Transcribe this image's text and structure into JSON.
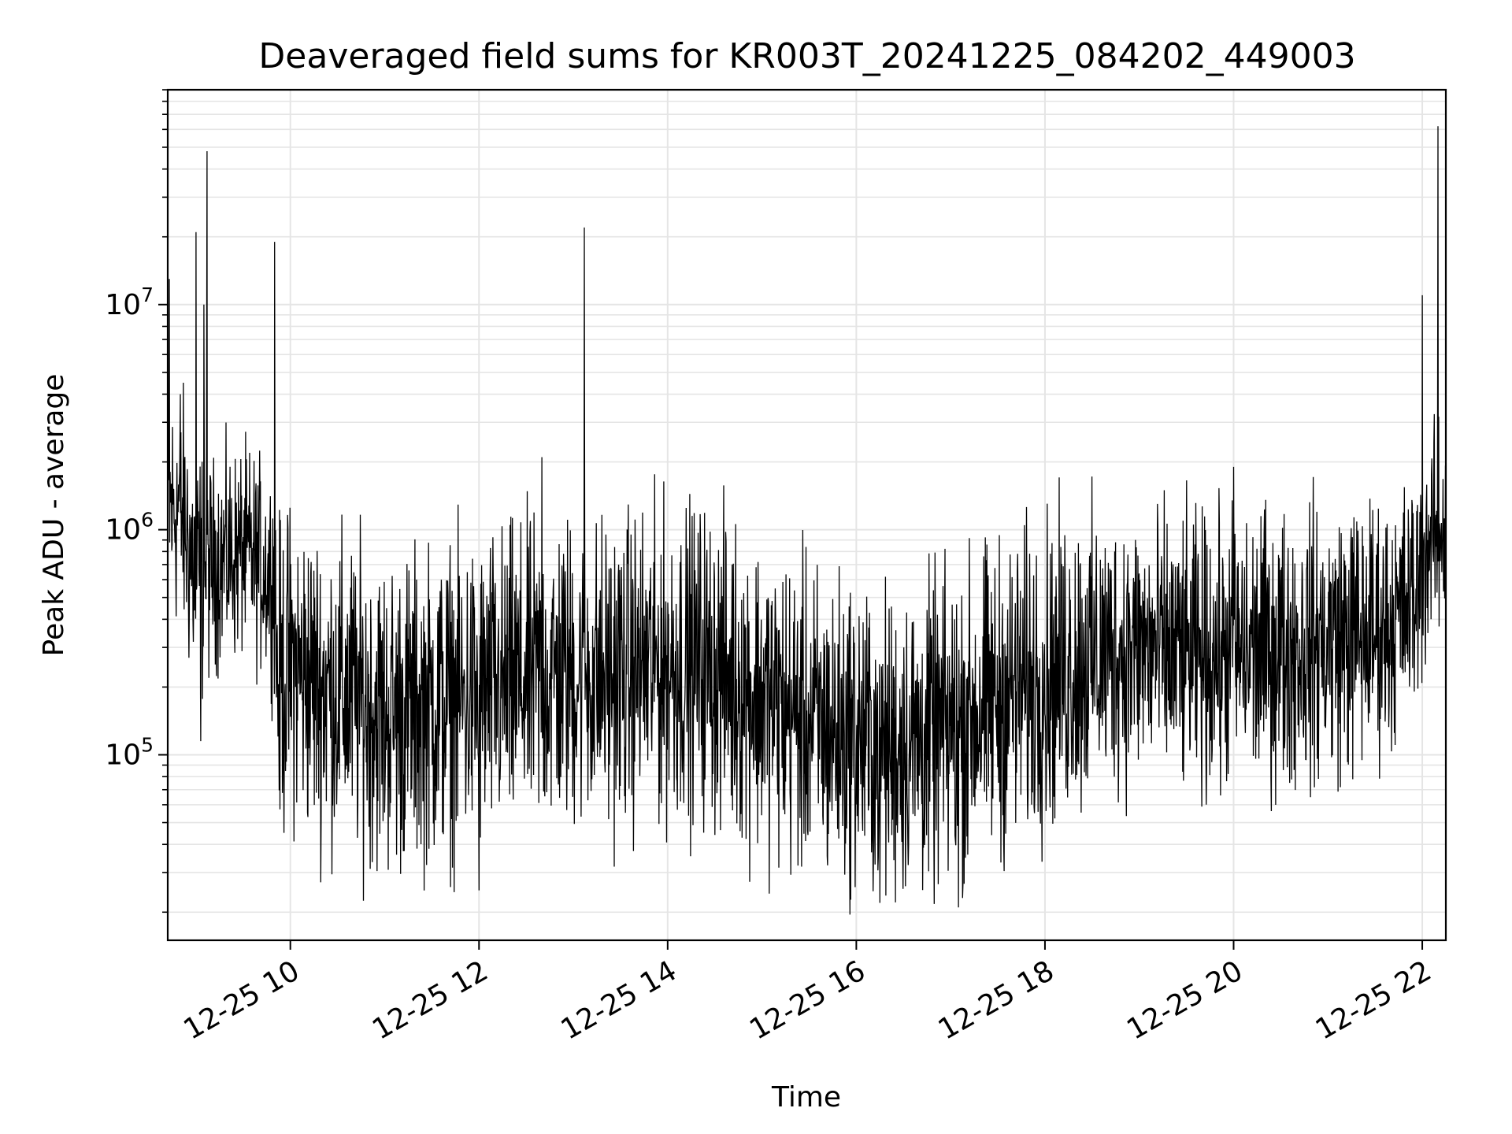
{
  "chart_data": {
    "type": "line",
    "title": "Deaveraged field sums for KR003T_20241225_084202_449003",
    "xlabel": "Time",
    "ylabel": "Peak ADU - average",
    "y_scale": "log",
    "ylim": [
      15000,
      90000000
    ],
    "xlim": [
      "2024-12-25 08:42",
      "2024-12-25 22:15"
    ],
    "grid": true,
    "line_color": "#000000",
    "grid_color": "#e5e5e5",
    "x_ticks": [
      {
        "value": "2024-12-25 10:00",
        "label": "12-25 10"
      },
      {
        "value": "2024-12-25 12:00",
        "label": "12-25 12"
      },
      {
        "value": "2024-12-25 14:00",
        "label": "12-25 14"
      },
      {
        "value": "2024-12-25 16:00",
        "label": "12-25 16"
      },
      {
        "value": "2024-12-25 18:00",
        "label": "12-25 18"
      },
      {
        "value": "2024-12-25 20:00",
        "label": "12-25 20"
      },
      {
        "value": "2024-12-25 22:00",
        "label": "12-25 22"
      }
    ],
    "y_ticks": [
      {
        "value": 100000,
        "base": "10",
        "exponent": "5"
      },
      {
        "value": 1000000,
        "base": "10",
        "exponent": "6"
      },
      {
        "value": 10000000,
        "base": "10",
        "exponent": "7"
      }
    ],
    "series": [
      {
        "x": [
          "2024-12-25 08:42",
          "2024-12-25 08:50",
          "2024-12-25 09:00",
          "2024-12-25 09:10",
          "2024-12-25 09:20",
          "2024-12-25 09:30",
          "2024-12-25 09:40",
          "2024-12-25 09:50",
          "2024-12-25 09:52",
          "2024-12-25 10:00",
          "2024-12-25 10:20",
          "2024-12-25 10:40",
          "2024-12-25 11:00",
          "2024-12-25 11:20",
          "2024-12-25 11:40",
          "2024-12-25 12:00",
          "2024-12-25 12:20",
          "2024-12-25 12:40",
          "2024-12-25 13:00",
          "2024-12-25 13:20",
          "2024-12-25 13:40",
          "2024-12-25 14:00",
          "2024-12-25 14:20",
          "2024-12-25 14:40",
          "2024-12-25 15:00",
          "2024-12-25 15:20",
          "2024-12-25 15:40",
          "2024-12-25 16:00",
          "2024-12-25 16:20",
          "2024-12-25 16:40",
          "2024-12-25 17:00",
          "2024-12-25 17:20",
          "2024-12-25 17:40",
          "2024-12-25 18:00",
          "2024-12-25 18:20",
          "2024-12-25 18:40",
          "2024-12-25 19:00",
          "2024-12-25 19:20",
          "2024-12-25 19:40",
          "2024-12-25 20:00",
          "2024-12-25 20:20",
          "2024-12-25 20:40",
          "2024-12-25 21:00",
          "2024-12-25 21:20",
          "2024-12-25 21:40",
          "2024-12-25 21:55",
          "2024-12-25 22:05",
          "2024-12-25 22:15"
        ],
        "y": [
          1200000,
          1300000,
          600000,
          700000,
          750000,
          800000,
          700000,
          600000,
          200000,
          250000,
          200000,
          180000,
          150000,
          160000,
          170000,
          180000,
          200000,
          220000,
          230000,
          220000,
          240000,
          250000,
          260000,
          220000,
          180000,
          150000,
          130000,
          120000,
          110000,
          115000,
          130000,
          160000,
          190000,
          220000,
          260000,
          280000,
          300000,
          280000,
          270000,
          280000,
          290000,
          300000,
          320000,
          340000,
          380000,
          500000,
          900000,
          1000000
        ],
        "noise": [
          0.35,
          0.35,
          0.4,
          0.3,
          0.3,
          0.3,
          0.3,
          0.3,
          0.45,
          0.45,
          0.45,
          0.45,
          0.45,
          0.45,
          0.45,
          0.45,
          0.45,
          0.45,
          0.45,
          0.45,
          0.45,
          0.45,
          0.45,
          0.45,
          0.45,
          0.45,
          0.45,
          0.45,
          0.45,
          0.45,
          0.45,
          0.45,
          0.45,
          0.45,
          0.45,
          0.4,
          0.4,
          0.4,
          0.4,
          0.4,
          0.4,
          0.4,
          0.4,
          0.4,
          0.35,
          0.35,
          0.3,
          0.3
        ]
      }
    ],
    "spikes": [
      {
        "x": "2024-12-25 08:43",
        "y": 13000000
      },
      {
        "x": "2024-12-25 08:50",
        "y": 4000000
      },
      {
        "x": "2024-12-25 09:00",
        "y": 21000000
      },
      {
        "x": "2024-12-25 09:03",
        "y": 115000
      },
      {
        "x": "2024-12-25 09:05",
        "y": 10000000
      },
      {
        "x": "2024-12-25 09:07",
        "y": 48000000
      },
      {
        "x": "2024-12-25 09:50",
        "y": 19000000
      },
      {
        "x": "2024-12-25 12:40",
        "y": 2100000
      },
      {
        "x": "2024-12-25 13:07",
        "y": 22000000
      },
      {
        "x": "2024-12-25 12:00",
        "y": 25000
      },
      {
        "x": "2024-12-25 16:15",
        "y": 22000
      },
      {
        "x": "2024-12-25 17:05",
        "y": 21000
      },
      {
        "x": "2024-12-25 20:00",
        "y": 36000
      },
      {
        "x": "2024-12-25 20:00",
        "y": 1900000
      },
      {
        "x": "2024-12-25 22:00",
        "y": 11000000
      },
      {
        "x": "2024-12-25 22:10",
        "y": 62000000
      }
    ]
  }
}
